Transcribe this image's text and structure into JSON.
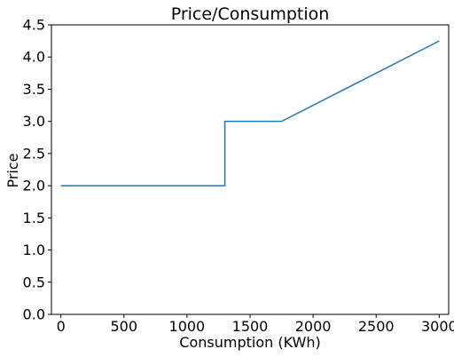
{
  "chart_data": {
    "type": "line",
    "title": "Price/Consumption",
    "xlabel": "Consumption (KWh)",
    "ylabel": "Price",
    "xlim": [
      -75,
      3075
    ],
    "ylim": [
      0,
      4.5
    ],
    "xticks": [
      0,
      500,
      1000,
      1500,
      2000,
      2500,
      3000
    ],
    "yticks": [
      0.0,
      0.5,
      1.0,
      1.5,
      2.0,
      2.5,
      3.0,
      3.5,
      4.0,
      4.5
    ],
    "xtick_labels": [
      "0",
      "500",
      "1000",
      "1500",
      "2000",
      "2500",
      "3000"
    ],
    "ytick_labels": [
      "0.0",
      "0.5",
      "1.0",
      "1.5",
      "2.0",
      "2.5",
      "3.0",
      "3.5",
      "4.0",
      "4.5"
    ],
    "grid": false,
    "series": [
      {
        "color": "#1f77b4",
        "x": [
          0,
          1300,
          1300,
          1750,
          3000
        ],
        "y": [
          2.0,
          2.0,
          3.0,
          3.0,
          4.25
        ]
      }
    ]
  }
}
